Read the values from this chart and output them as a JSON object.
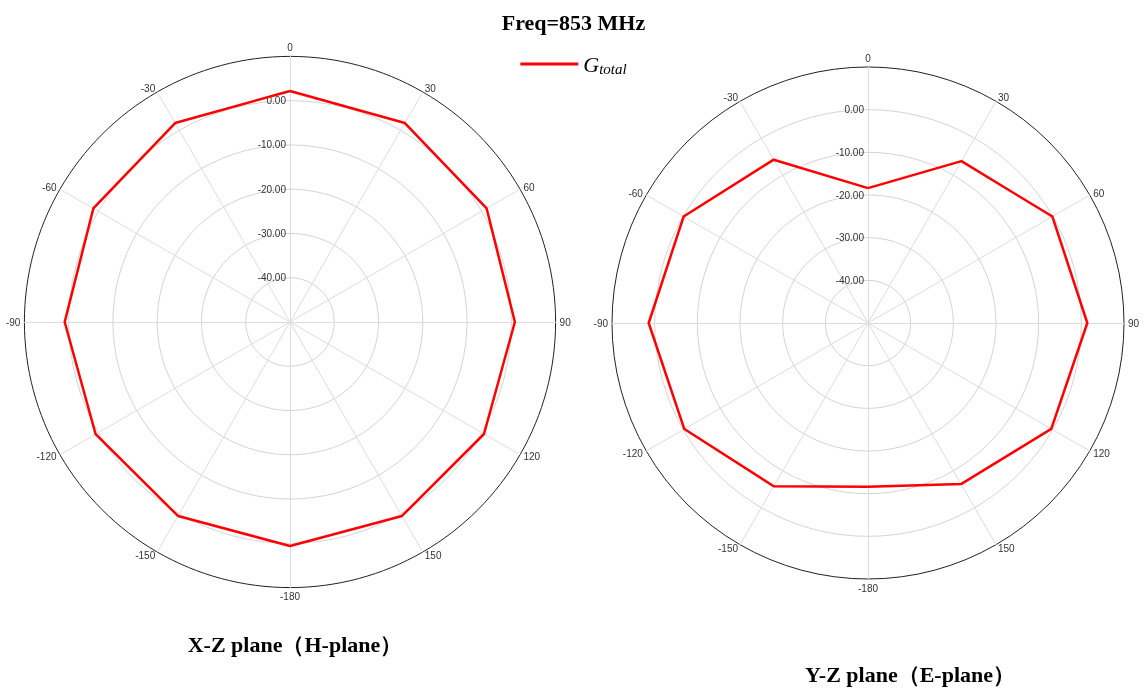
{
  "chart_data": [
    {
      "type": "radar",
      "title": "Freq=853 MHz",
      "xlabel": "X-Z plane（H-plane）",
      "categories": [
        "0",
        "30",
        "60",
        "90",
        "120",
        "150",
        "-180",
        "-150",
        "-120",
        "-90",
        "-60",
        "-30"
      ],
      "ylim": [
        -50,
        10
      ],
      "yticks": [
        {
          "value": -40,
          "label": "-40.00"
        },
        {
          "value": -30,
          "label": "-30.00"
        },
        {
          "value": -20,
          "label": "-20.00"
        },
        {
          "value": -10,
          "label": "-10.00"
        },
        {
          "value": 0,
          "label": "0.00"
        }
      ],
      "grid": true,
      "legend": "top",
      "series": [
        {
          "name": "G$_{total}$",
          "color": "#ff0000",
          "values": [
            2.2,
            1.9,
            1.3,
            0.8,
            0.6,
            0.6,
            0.6,
            0.6,
            0.7,
            0.9,
            1.3,
            1.9
          ]
        }
      ]
    },
    {
      "type": "radar",
      "xlabel": "Y-Z plane（E-plane）",
      "categories": [
        "0",
        "30",
        "60",
        "90",
        "120",
        "150",
        "-180",
        "-150",
        "-120",
        "-90",
        "-60",
        "-30"
      ],
      "ylim": [
        -50,
        10
      ],
      "yticks": [
        {
          "value": -40,
          "label": "-40.00"
        },
        {
          "value": -30,
          "label": "-30.00"
        },
        {
          "value": -20,
          "label": "-20.00"
        },
        {
          "value": -10,
          "label": "-10.00"
        },
        {
          "value": 0,
          "label": "0.00"
        }
      ],
      "grid": true,
      "series": [
        {
          "color": "#ff0000",
          "values": [
            -18.4,
            -6.2,
            -0.1,
            1.4,
            -0.4,
            -6.4,
            -11.6,
            -5.8,
            -0.3,
            1.4,
            -0.1,
            -5.8
          ]
        }
      ]
    }
  ]
}
